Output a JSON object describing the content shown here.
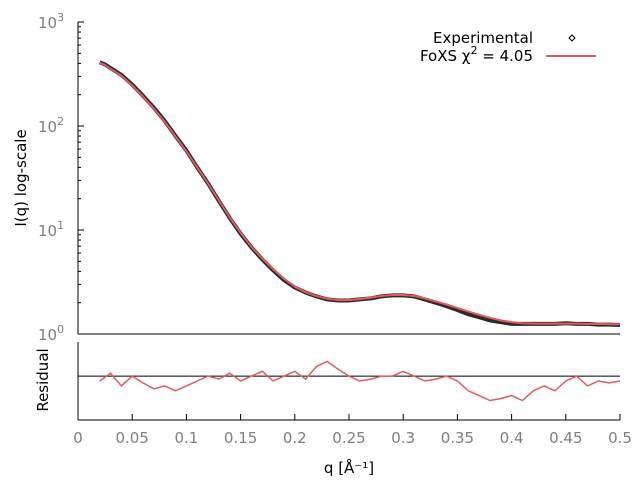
{
  "chart_data": [
    {
      "type": "line",
      "panel": "main",
      "xlabel": "",
      "ylabel": "I(q) log-scale",
      "y_scale": "log",
      "ylim": [
        1,
        1000
      ],
      "xlim": [
        0,
        0.5
      ],
      "y_ticks": [
        {
          "base": "10",
          "exp": "0"
        },
        {
          "base": "10",
          "exp": "1"
        },
        {
          "base": "10",
          "exp": "2"
        },
        {
          "base": "10",
          "exp": "3"
        }
      ],
      "legend": {
        "position": "top-right",
        "entries": [
          {
            "label": "Experimental",
            "marker": "diamond-dot",
            "color": "#000000"
          },
          {
            "label_prefix": "FoXS χ",
            "label_sup": "2",
            "label_suffix": " = 4.05",
            "marker": "line",
            "color": "#e05c5c"
          }
        ]
      },
      "series": [
        {
          "name": "Experimental",
          "color": "#2a2a2a",
          "x": [
            0.02,
            0.025,
            0.03,
            0.04,
            0.05,
            0.06,
            0.07,
            0.08,
            0.09,
            0.1,
            0.11,
            0.12,
            0.13,
            0.14,
            0.15,
            0.16,
            0.17,
            0.18,
            0.19,
            0.2,
            0.21,
            0.22,
            0.23,
            0.24,
            0.25,
            0.26,
            0.27,
            0.28,
            0.29,
            0.3,
            0.31,
            0.32,
            0.33,
            0.34,
            0.35,
            0.36,
            0.37,
            0.38,
            0.39,
            0.4,
            0.41,
            0.42,
            0.43,
            0.44,
            0.45,
            0.46,
            0.47,
            0.48,
            0.49,
            0.5
          ],
          "y": [
            410,
            390,
            360,
            310,
            250,
            195,
            150,
            112,
            80,
            58,
            40,
            28,
            19,
            13,
            9.2,
            6.8,
            5.2,
            4.1,
            3.3,
            2.8,
            2.5,
            2.3,
            2.15,
            2.1,
            2.1,
            2.15,
            2.2,
            2.3,
            2.35,
            2.35,
            2.3,
            2.15,
            2.0,
            1.85,
            1.7,
            1.55,
            1.45,
            1.35,
            1.3,
            1.25,
            1.25,
            1.25,
            1.25,
            1.25,
            1.27,
            1.25,
            1.25,
            1.23,
            1.23,
            1.22
          ]
        },
        {
          "name": "FoXS χ2 = 4.05",
          "color": "#e05c5c",
          "x": [
            0.02,
            0.025,
            0.03,
            0.04,
            0.05,
            0.06,
            0.07,
            0.08,
            0.09,
            0.1,
            0.11,
            0.12,
            0.13,
            0.14,
            0.15,
            0.16,
            0.17,
            0.18,
            0.19,
            0.2,
            0.21,
            0.22,
            0.23,
            0.24,
            0.25,
            0.26,
            0.27,
            0.28,
            0.29,
            0.3,
            0.31,
            0.32,
            0.33,
            0.34,
            0.35,
            0.36,
            0.37,
            0.38,
            0.39,
            0.4,
            0.41,
            0.42,
            0.43,
            0.44,
            0.45,
            0.46,
            0.47,
            0.48,
            0.49,
            0.5
          ],
          "y": [
            405,
            385,
            355,
            305,
            245,
            192,
            147,
            110,
            79,
            57,
            40,
            28,
            19.2,
            13.2,
            9.4,
            6.9,
            5.3,
            4.2,
            3.4,
            2.85,
            2.52,
            2.32,
            2.18,
            2.12,
            2.12,
            2.17,
            2.24,
            2.32,
            2.37,
            2.37,
            2.32,
            2.2,
            2.06,
            1.92,
            1.78,
            1.65,
            1.53,
            1.43,
            1.35,
            1.3,
            1.27,
            1.26,
            1.26,
            1.26,
            1.26,
            1.26,
            1.25,
            1.25,
            1.24,
            1.24
          ]
        }
      ]
    },
    {
      "type": "line",
      "panel": "residual",
      "xlabel": "q [Å⁻¹]",
      "ylabel": "Residual",
      "xlim": [
        0,
        0.5
      ],
      "x_ticks": [
        "0",
        "0.05",
        "0.1",
        "0.15",
        "0.2",
        "0.25",
        "0.3",
        "0.35",
        "0.4",
        "0.45",
        "0.5"
      ],
      "ylim": [
        -0.4,
        0.4
      ],
      "reference_line": 0.05,
      "series": [
        {
          "name": "",
          "color": "#e05c5c",
          "x": [
            0.02,
            0.03,
            0.04,
            0.05,
            0.06,
            0.07,
            0.08,
            0.09,
            0.1,
            0.11,
            0.12,
            0.13,
            0.14,
            0.15,
            0.16,
            0.17,
            0.18,
            0.19,
            0.2,
            0.21,
            0.22,
            0.23,
            0.24,
            0.25,
            0.26,
            0.27,
            0.28,
            0.29,
            0.3,
            0.31,
            0.32,
            0.33,
            0.34,
            0.35,
            0.36,
            0.37,
            0.38,
            0.39,
            0.4,
            0.41,
            0.42,
            0.43,
            0.44,
            0.45,
            0.46,
            0.47,
            0.48,
            0.49,
            0.5
          ],
          "y": [
            0.0,
            0.08,
            -0.05,
            0.05,
            -0.02,
            -0.08,
            -0.05,
            -0.1,
            -0.05,
            0.0,
            0.05,
            0.02,
            0.08,
            0.0,
            0.05,
            0.1,
            0.0,
            0.05,
            0.1,
            0.02,
            0.15,
            0.2,
            0.12,
            0.05,
            0.0,
            0.02,
            0.05,
            0.05,
            0.1,
            0.05,
            0.0,
            0.02,
            0.05,
            0.0,
            -0.1,
            -0.15,
            -0.2,
            -0.18,
            -0.15,
            -0.2,
            -0.1,
            -0.05,
            -0.1,
            0.0,
            0.05,
            -0.05,
            0.0,
            -0.02,
            0.0
          ]
        }
      ]
    }
  ]
}
